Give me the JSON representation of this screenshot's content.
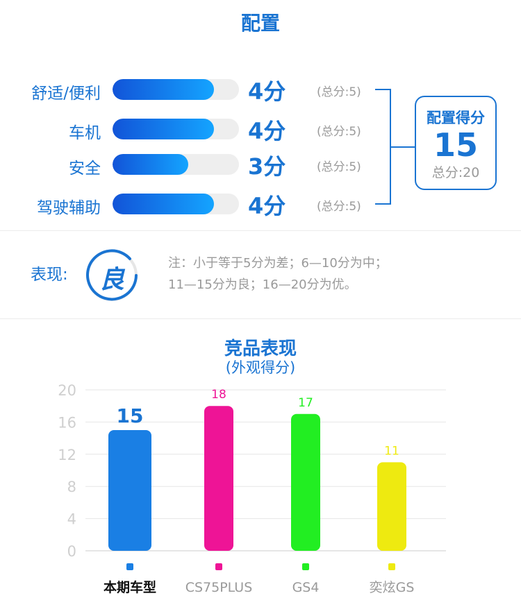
{
  "config": {
    "title": "配置",
    "rows": [
      {
        "label": "舒适/便利",
        "score": 4,
        "score_text": "4分",
        "total_text": "(总分:5)"
      },
      {
        "label": "车机",
        "score": 4,
        "score_text": "4分",
        "total_text": "(总分:5)"
      },
      {
        "label": "安全",
        "score": 3,
        "score_text": "3分",
        "total_text": "(总分:5)"
      },
      {
        "label": "驾驶辅助",
        "score": 4,
        "score_text": "4分",
        "total_text": "(总分:5)"
      }
    ],
    "max_per_row": 5,
    "summary": {
      "heading": "配置得分",
      "value": "15",
      "total_text": "总分:20"
    }
  },
  "performance": {
    "label": "表现:",
    "rating": "良",
    "note_line1": "注：小于等于5分为差；6—10分为中；",
    "note_line2": "11—15分为良；16—20分为优。"
  },
  "colors": {
    "accent": "#1a74d2"
  },
  "chart_data": {
    "type": "bar",
    "title": "竞品表现",
    "subtitle": "(外观得分)",
    "categories": [
      "本期车型",
      "CS75PLUS",
      "GS4",
      "奕炫GS"
    ],
    "values": [
      15,
      18,
      17,
      11
    ],
    "value_labels": [
      "15",
      "18",
      "17",
      "11"
    ],
    "colors": [
      "#1a7fe4",
      "#ee1496",
      "#22ee22",
      "#eeea10"
    ],
    "ylim": [
      0,
      20
    ],
    "yticks": [
      0,
      4,
      8,
      12,
      16,
      20
    ],
    "ytick_labels": [
      "0",
      "4",
      "8",
      "12",
      "16",
      "20"
    ],
    "grid": true,
    "legend": "bottom"
  }
}
